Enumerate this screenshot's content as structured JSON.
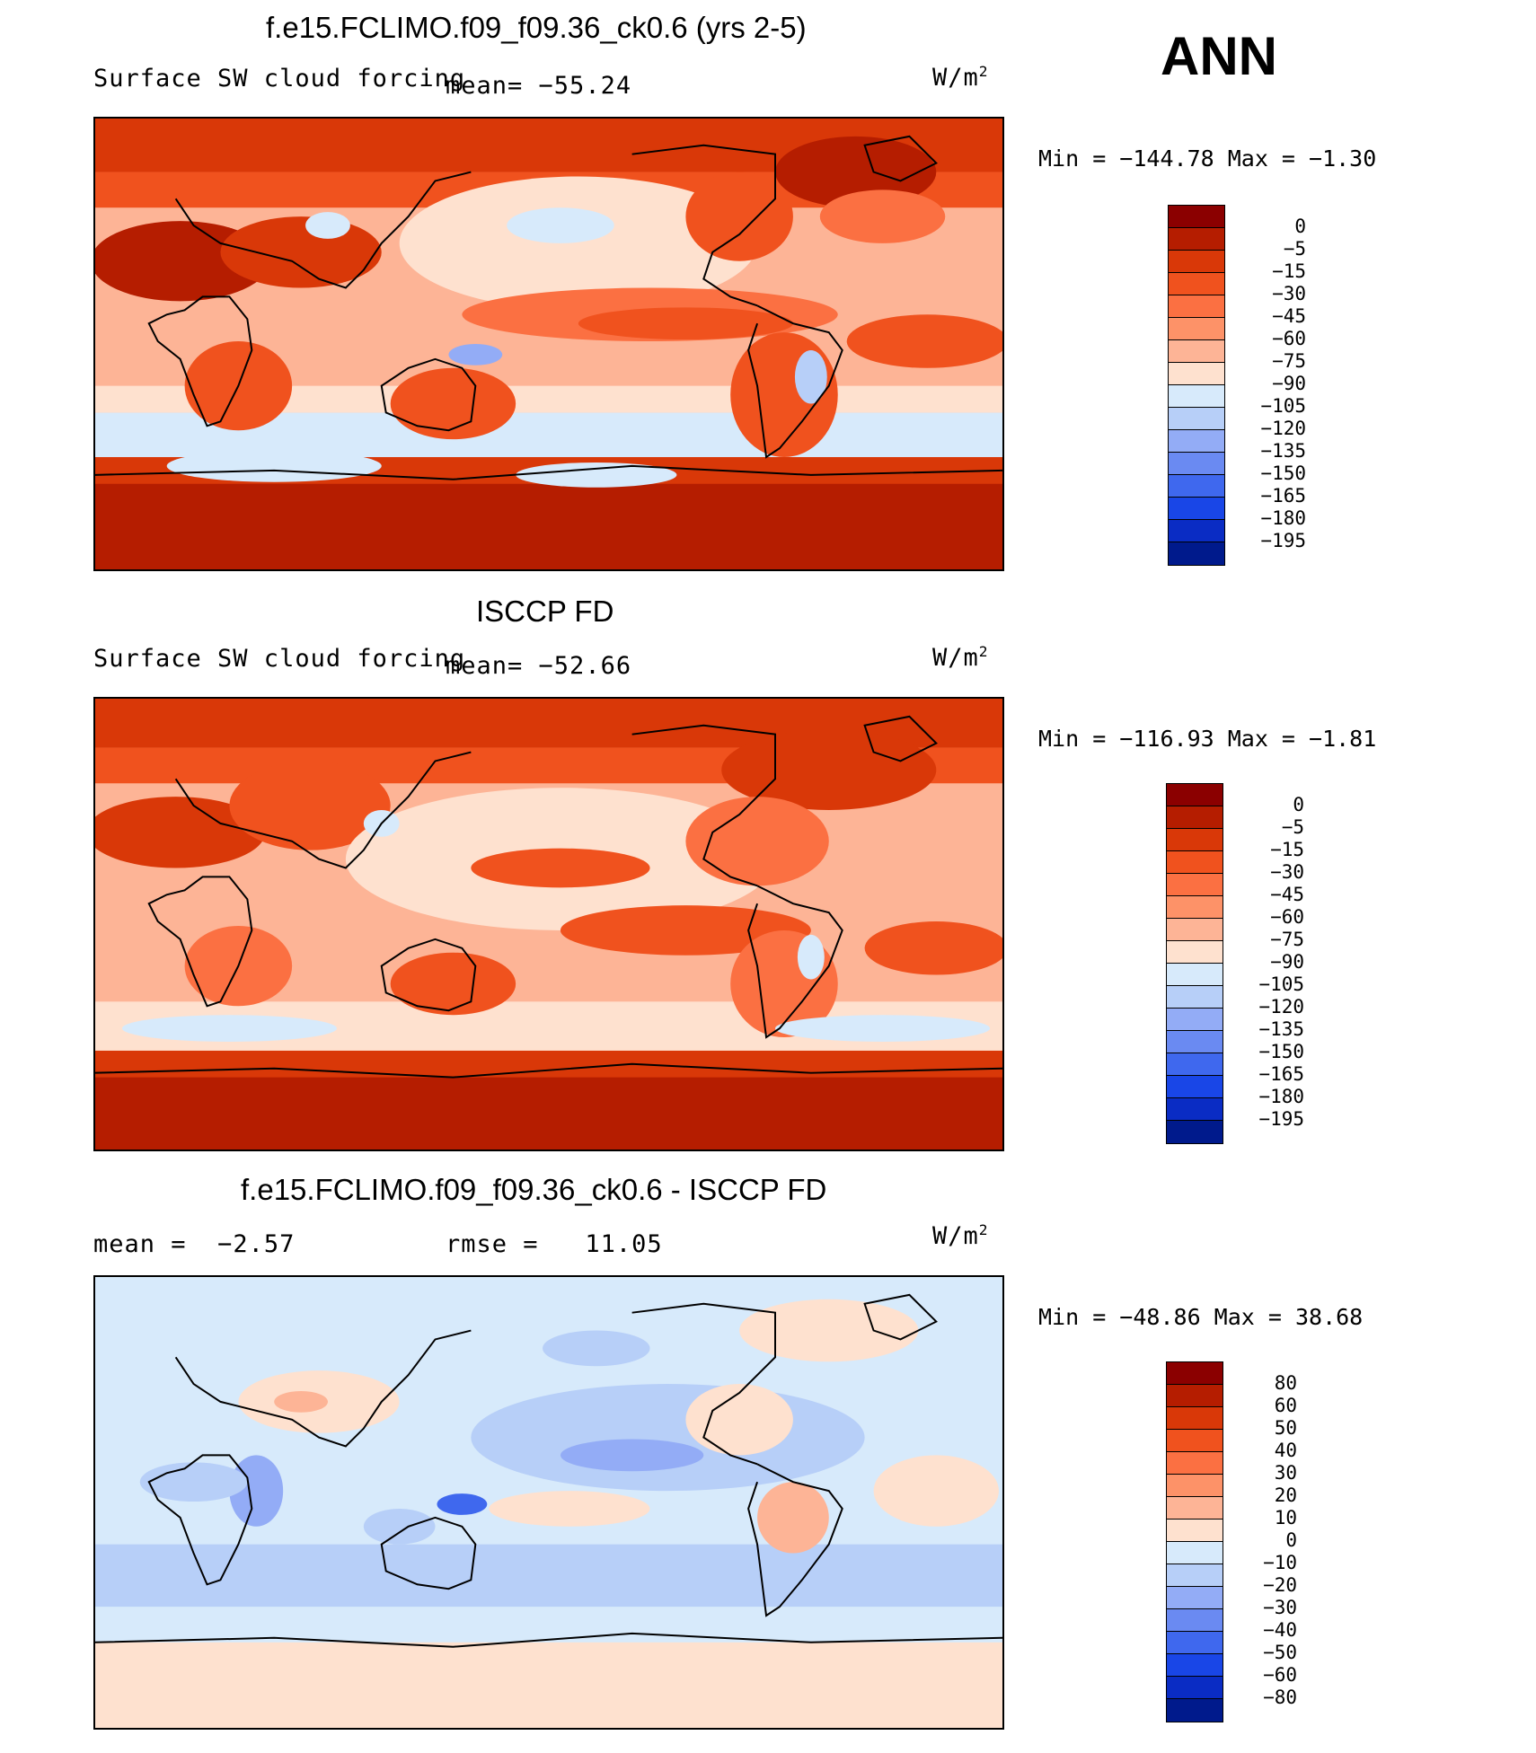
{
  "season": "ANN",
  "panels": [
    {
      "title": "f.e15.FCLIMO.f09_f09.36_ck0.6 (yrs 2-5)",
      "left_label": "Surface SW cloud forcing",
      "mean_label": "mean=",
      "mean_value": "−55.24",
      "units": "W/m",
      "units_exp": "2",
      "minmax": "Min = −144.78 Max =  −1.30",
      "colorbar_levels": [
        "0",
        "−5",
        "−15",
        "−30",
        "−45",
        "−60",
        "−75",
        "−90",
        "−105",
        "−120",
        "−135",
        "−150",
        "−165",
        "−180",
        "−195"
      ],
      "colorbar_colors": [
        "#8b0000",
        "#b51d00",
        "#d93808",
        "#f0521e",
        "#fb7042",
        "#fd9268",
        "#fdb496",
        "#fee1cf",
        "#d7eafb",
        "#b7cff8",
        "#93acf6",
        "#6a8af2",
        "#3f68ee",
        "#1946e7",
        "#0a2cc4",
        "#001a8c"
      ]
    },
    {
      "title": "ISCCP FD",
      "left_label": "Surface SW cloud forcing",
      "mean_label": "mean=",
      "mean_value": "−52.66",
      "units": "W/m",
      "units_exp": "2",
      "minmax": "Min = −116.93 Max =  −1.81",
      "colorbar_levels": [
        "0",
        "−5",
        "−15",
        "−30",
        "−45",
        "−60",
        "−75",
        "−90",
        "−105",
        "−120",
        "−135",
        "−150",
        "−165",
        "−180",
        "−195"
      ],
      "colorbar_colors": [
        "#8b0000",
        "#b51d00",
        "#d93808",
        "#f0521e",
        "#fb7042",
        "#fd9268",
        "#fdb496",
        "#fee1cf",
        "#d7eafb",
        "#b7cff8",
        "#93acf6",
        "#6a8af2",
        "#3f68ee",
        "#1946e7",
        "#0a2cc4",
        "#001a8c"
      ]
    },
    {
      "title": "f.e15.FCLIMO.f09_f09.36_ck0.6 - ISCCP FD",
      "mean_label": "mean =",
      "mean_value": "−2.57",
      "rmse_label": "rmse =",
      "rmse_value": "11.05",
      "units": "W/m",
      "units_exp": "2",
      "minmax": "Min = −48.86 Max =  38.68",
      "colorbar_levels": [
        "80",
        "60",
        "50",
        "40",
        "30",
        "20",
        "10",
        "0",
        "−10",
        "−20",
        "−30",
        "−40",
        "−50",
        "−60",
        "−80"
      ],
      "colorbar_colors": [
        "#8b0000",
        "#b51d00",
        "#d93808",
        "#f0521e",
        "#fb7042",
        "#fd9268",
        "#fdb496",
        "#fee1cf",
        "#d7eafb",
        "#b7cff8",
        "#93acf6",
        "#6a8af2",
        "#3f68ee",
        "#1946e7",
        "#0a2cc4",
        "#001a8c"
      ]
    }
  ]
}
